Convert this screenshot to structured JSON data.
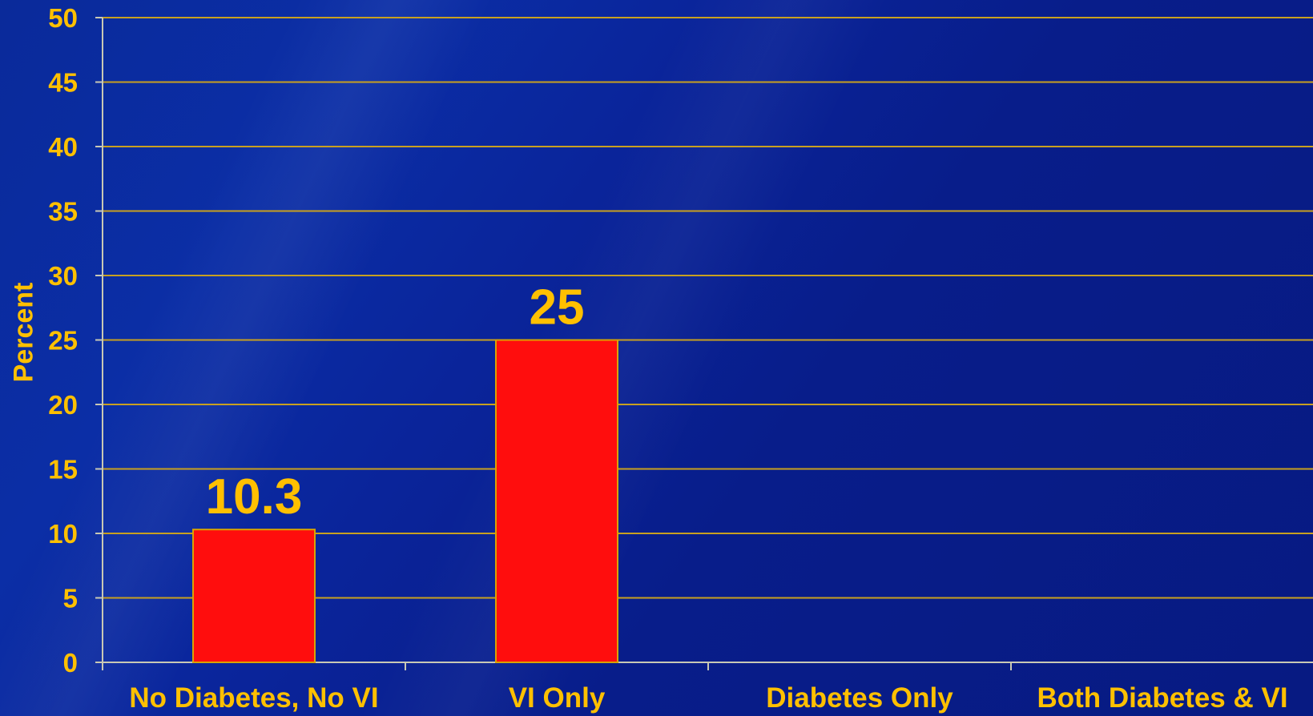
{
  "chart_data": {
    "type": "bar",
    "categories": [
      "No Diabetes, No VI",
      "VI Only",
      "Diabetes Only",
      "Both Diabetes & VI"
    ],
    "values": [
      10.3,
      25,
      null,
      null
    ],
    "data_labels": [
      "10.3",
      "25",
      "",
      ""
    ],
    "ylabel": "Percent",
    "xlabel": "",
    "title": "",
    "ylim": [
      0,
      50
    ],
    "yticks": [
      0,
      5,
      10,
      15,
      20,
      25,
      30,
      35,
      40,
      45,
      50
    ],
    "grid": true,
    "colors": {
      "bar": "#ff0d0d",
      "bar_border": "#d9a300",
      "text": "#ffc000",
      "grid": "#c8a020",
      "axis": "#c8c8b4"
    }
  }
}
